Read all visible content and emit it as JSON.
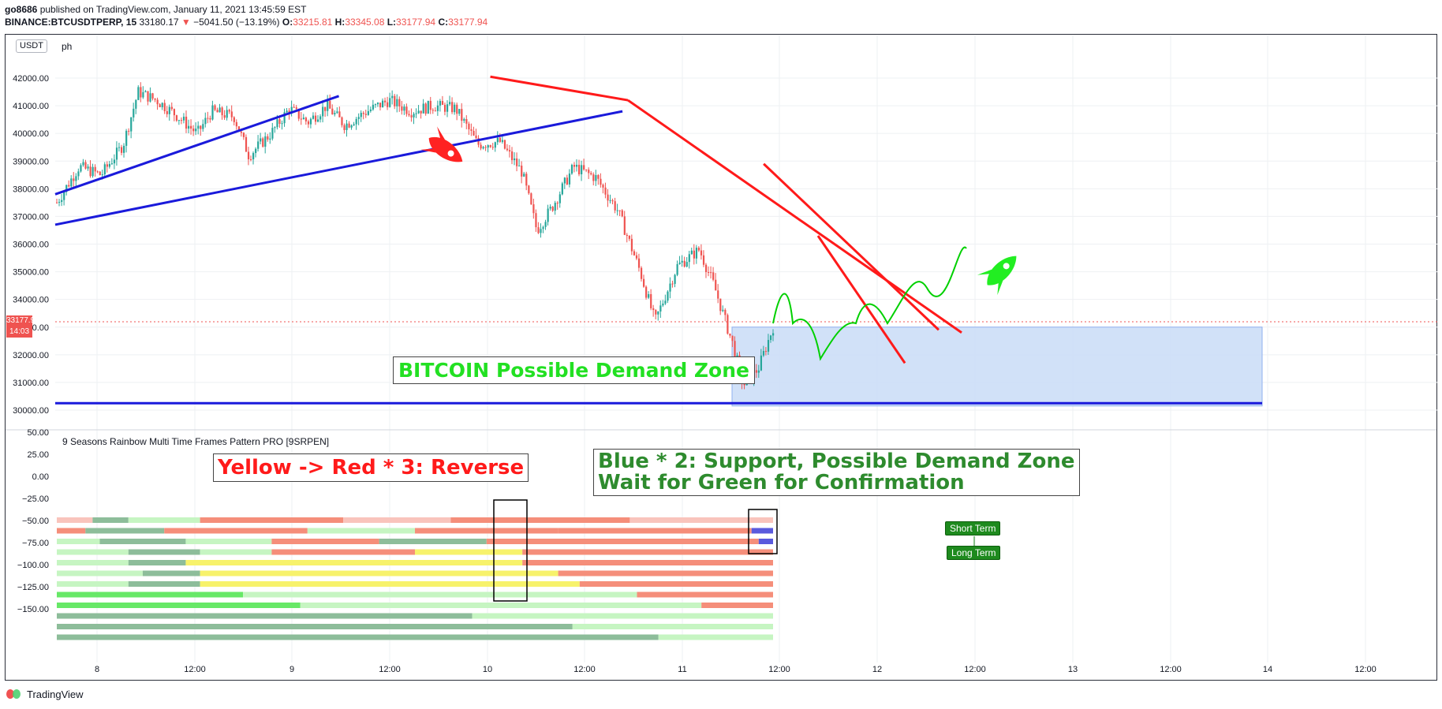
{
  "header": {
    "author": "go8686",
    "published": "published on TradingView.com, January 11, 2021 13:45:59 EST",
    "symbol": "BINANCE:BTCUSDTPERP, 15",
    "last": "33180.17",
    "arrow": "▼",
    "change": "−5041.50 (−13.19%)",
    "o_label": "O:",
    "o_val": "33215.81",
    "h_label": "H:",
    "h_val": "33345.08",
    "l_label": "L:",
    "l_val": "33177.94",
    "c_label": "C:",
    "c_val": "33177.94"
  },
  "price_pane": {
    "currency": "USDT",
    "ph_label": "ph",
    "last_price_tag": "33177.94",
    "countdown_tag": "14:03",
    "partial_top_label": "4",
    "partial_top_label_suffix": "0"
  },
  "indicator": {
    "title": "9 Seasons Rainbow Multi Time Frames Pattern PRO [9SRPEN]",
    "y_ticks": [
      "50.00",
      "25.00",
      "0.00",
      "−25.00",
      "−50.00",
      "−75.00",
      "−100.00",
      "−125.00",
      "−150.00"
    ],
    "short_term": "Short Term",
    "long_term": "Long Term"
  },
  "annotations": {
    "demand_zone": "BITCOIN Possible Demand Zone",
    "reverse": "Yellow -> Red * 3:  Reverse",
    "blue_line1": "Blue * 2: Support, Possible Demand Zone",
    "blue_line2": "Wait for Green for Confirmation"
  },
  "branding": {
    "logo_text": "TradingView"
  },
  "colors": {
    "up": "#26a69a",
    "down": "#ef5350",
    "trend_red": "#ff1a1a",
    "trend_blue": "#1a1adb",
    "zone": "#c9dcf7",
    "green_annot": "#00d000",
    "dark_green_annot": "#2e8b2e"
  },
  "chart_data": [
    {
      "type": "candlestick",
      "y_axis": {
        "ticks": [
          "30000.00",
          "31000.00",
          "32000.00",
          "33000.00",
          "34000.00",
          "35000.00",
          "36000.00",
          "37000.00",
          "38000.00",
          "39000.00",
          "40000.00",
          "41000.00",
          "42000.00"
        ],
        "ylim": [
          29500,
          43000
        ]
      },
      "x_axis": {
        "ticks": [
          "8",
          "12:00",
          "9",
          "12:00",
          "10",
          "12:00",
          "11",
          "12:00",
          "12",
          "12:00",
          "13",
          "12:00",
          "14",
          "12:00"
        ]
      },
      "series_path": [
        [
          0,
          37500
        ],
        [
          6,
          38800
        ],
        [
          12,
          38500
        ],
        [
          18,
          39600
        ],
        [
          22,
          41500
        ],
        [
          27,
          41200
        ],
        [
          32,
          40700
        ],
        [
          38,
          40000
        ],
        [
          42,
          40800
        ],
        [
          48,
          40600
        ],
        [
          52,
          39200
        ],
        [
          58,
          40000
        ],
        [
          63,
          40900
        ],
        [
          68,
          40400
        ],
        [
          73,
          41000
        ],
        [
          78,
          40300
        ],
        [
          84,
          40800
        ],
        [
          90,
          41200
        ],
        [
          96,
          40800
        ],
        [
          102,
          41000
        ],
        [
          108,
          40900
        ],
        [
          114,
          39600
        ],
        [
          120,
          39700
        ],
        [
          126,
          38600
        ],
        [
          130,
          36500
        ],
        [
          134,
          37300
        ],
        [
          140,
          38800
        ],
        [
          146,
          38400
        ],
        [
          152,
          37200
        ],
        [
          158,
          35000
        ],
        [
          162,
          33200
        ],
        [
          168,
          35200
        ],
        [
          174,
          35800
        ],
        [
          178,
          34500
        ],
        [
          183,
          32400
        ],
        [
          186,
          30900
        ],
        [
          190,
          31500
        ],
        [
          194,
          33000
        ]
      ],
      "trendlines": [
        {
          "color": "red",
          "from": [
            36.05,
            42050
          ],
          "to": [
            47.45,
            41200
          ]
        },
        {
          "color": "red",
          "from": [
            47.45,
            41200
          ],
          "to": [
            75.1,
            32800
          ]
        },
        {
          "color": "red",
          "from": [
            58.7,
            38900
          ],
          "to": [
            73.2,
            32900
          ]
        },
        {
          "color": "red",
          "from": [
            63.2,
            36300
          ],
          "to": [
            70.4,
            31700
          ]
        },
        {
          "color": "blue",
          "from": [
            0,
            37800
          ],
          "to": [
            23.5,
            41350
          ]
        },
        {
          "color": "blue",
          "from": [
            0,
            36700
          ],
          "to": [
            47.0,
            40800
          ]
        },
        {
          "color": "blue",
          "from": [
            0,
            30250
          ],
          "to": [
            100,
            30250
          ]
        }
      ],
      "demand_zone": {
        "price_top": 33000,
        "price_bottom": 30150
      }
    },
    {
      "type": "heatmap",
      "rows": 12,
      "row_colors_start": [
        "salmon",
        "salmon",
        "pink",
        "salmon",
        "lightgreen",
        "lightgreen",
        "lightgreen",
        "lightgreen",
        "green",
        "green",
        "sage",
        "sage"
      ],
      "row_colors_end": [
        "salmon",
        "purple",
        "purple",
        "salmon",
        "salmon",
        "salmon",
        "salmon",
        "salmon",
        "salmon",
        "salmon",
        "lightgreen",
        "lightgreen"
      ]
    }
  ]
}
